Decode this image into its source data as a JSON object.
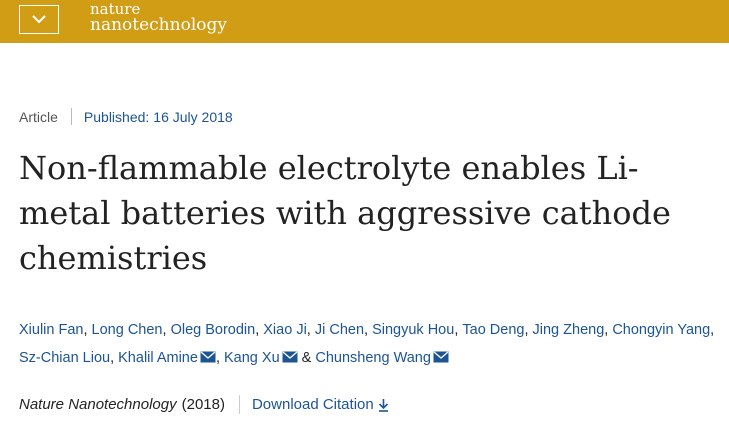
{
  "header": {
    "logo_line1": "nature",
    "logo_line2": "nanotechnology",
    "bar_color": "#d19d15",
    "menu_icon": "chevron-down-icon"
  },
  "article": {
    "type": "Article",
    "published_label": "Published:",
    "published_date": "16 July 2018",
    "title": "Non-flammable electrolyte enables Li-metal batteries with aggressive cathode chemistries",
    "authors": [
      {
        "name": "Xiulin Fan",
        "after": ", "
      },
      {
        "name": "Long Chen",
        "after": ", "
      },
      {
        "name": "Oleg Borodin",
        "after": ", "
      },
      {
        "name": "Xiao Ji",
        "after": ", "
      },
      {
        "name": "Ji Chen",
        "after": ", "
      },
      {
        "name": "Singyuk Hou",
        "after": ", "
      },
      {
        "name": "Tao Deng",
        "after": ", "
      },
      {
        "name": "Jing Zheng",
        "after": ", "
      },
      {
        "name": "Chongyin Yang",
        "after": ", "
      },
      {
        "name": "Sz-Chian Liou",
        "after": ", "
      },
      {
        "name": "Khalil Amine",
        "after": ", ",
        "email": true
      },
      {
        "name": "Kang Xu",
        "after": " & ",
        "email": true
      },
      {
        "name": "Chunsheng Wang",
        "after": "",
        "email": true
      }
    ],
    "journal": "Nature Nanotechnology",
    "year": "(2018)",
    "download_citation": "Download Citation",
    "link_color": "#1c5494"
  }
}
